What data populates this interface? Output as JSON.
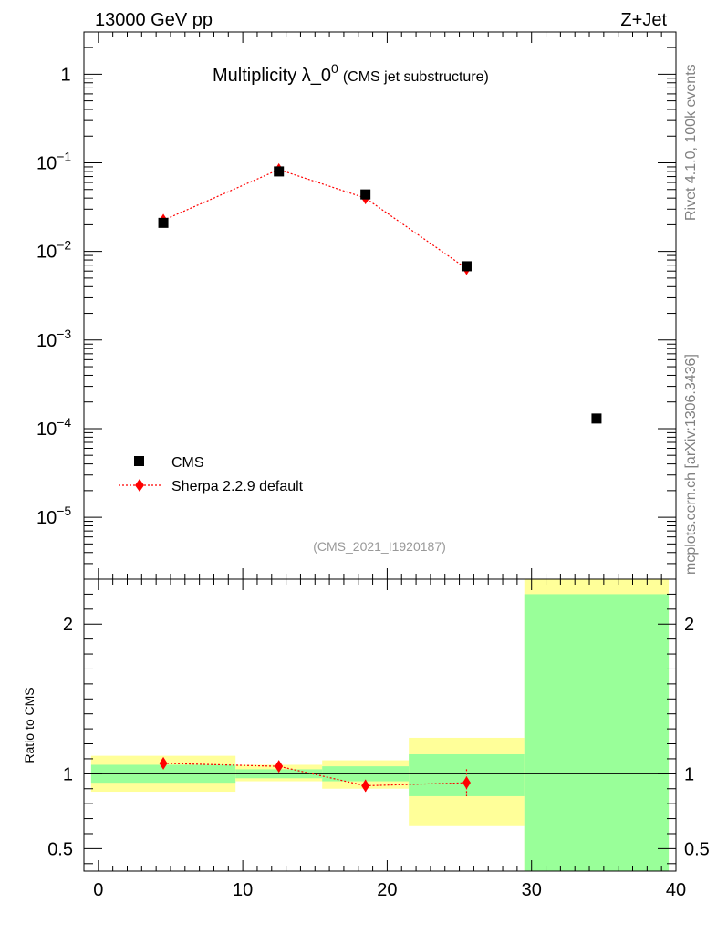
{
  "header": {
    "left": "13000 GeV pp",
    "right": "Z+Jet"
  },
  "title": {
    "main": "Multiplicity λ_0",
    "superscript": "0",
    "sub": "(CMS jet substructure)"
  },
  "side_labels": {
    "rivet": "Rivet 4.1.0,  100k events",
    "mcplots": "mcplots.cern.ch [arXiv:1306.3436]"
  },
  "analysis_id": "(CMS_2021_I1920187)",
  "legend": {
    "cms": "CMS",
    "sherpa": "Sherpa 2.2.9 default"
  },
  "colors": {
    "data": "#000000",
    "mc": "#ff0000",
    "band_inner": "#99ff99",
    "band_outer": "#ffff99"
  },
  "chart_data": {
    "type": "scatter",
    "x_ticks": [
      "0",
      "10",
      "20",
      "30",
      "40"
    ],
    "xlim": [
      -1,
      40
    ],
    "main_panel": {
      "yscale": "log",
      "ylim": [
        2e-06,
        3
      ],
      "y_ticks": [
        {
          "v": 1,
          "base": "1",
          "exp": ""
        },
        {
          "v": 0.1,
          "base": "10",
          "exp": "−1"
        },
        {
          "v": 0.01,
          "base": "10",
          "exp": "−2"
        },
        {
          "v": 0.001,
          "base": "10",
          "exp": "−3"
        },
        {
          "v": 0.0001,
          "base": "10",
          "exp": "−4"
        },
        {
          "v": 1e-05,
          "base": "10",
          "exp": "−5"
        }
      ],
      "series": [
        {
          "name": "CMS",
          "x": [
            4.5,
            12.5,
            18.5,
            25.5,
            34.5
          ],
          "y": [
            0.021,
            0.08,
            0.044,
            0.0068,
            0.00013
          ]
        },
        {
          "name": "Sherpa 2.2.9 default",
          "x": [
            4.5,
            12.5,
            18.5,
            25.5
          ],
          "y": [
            0.0225,
            0.084,
            0.04,
            0.0064
          ]
        }
      ]
    },
    "ratio_panel": {
      "ylabel": "Ratio to CMS",
      "ylim": [
        0.35,
        2.3
      ],
      "y_ticks": [
        {
          "v": 0.5,
          "label": "0.5"
        },
        {
          "v": 1,
          "label": "1"
        },
        {
          "v": 2,
          "label": "2"
        }
      ],
      "bands": [
        {
          "x0": -0.5,
          "x1": 9.5,
          "inner": [
            0.94,
            1.06
          ],
          "outer": [
            0.88,
            1.12
          ]
        },
        {
          "x0": 9.5,
          "x1": 15.5,
          "inner": [
            0.97,
            1.03
          ],
          "outer": [
            0.95,
            1.06
          ]
        },
        {
          "x0": 15.5,
          "x1": 21.5,
          "inner": [
            0.95,
            1.05
          ],
          "outer": [
            0.9,
            1.09
          ]
        },
        {
          "x0": 21.5,
          "x1": 29.5,
          "inner": [
            0.85,
            1.13
          ],
          "outer": [
            0.65,
            1.24
          ]
        },
        {
          "x0": 29.5,
          "x1": 39.5,
          "inner": [
            0.35,
            2.2
          ],
          "outer": [
            0.35,
            2.3
          ]
        }
      ],
      "mc": {
        "x": [
          4.5,
          12.5,
          18.5,
          25.5
        ],
        "y": [
          1.07,
          1.05,
          0.92,
          0.94
        ],
        "err": [
          0.03,
          0.025,
          0.04,
          0.09
        ]
      }
    }
  }
}
